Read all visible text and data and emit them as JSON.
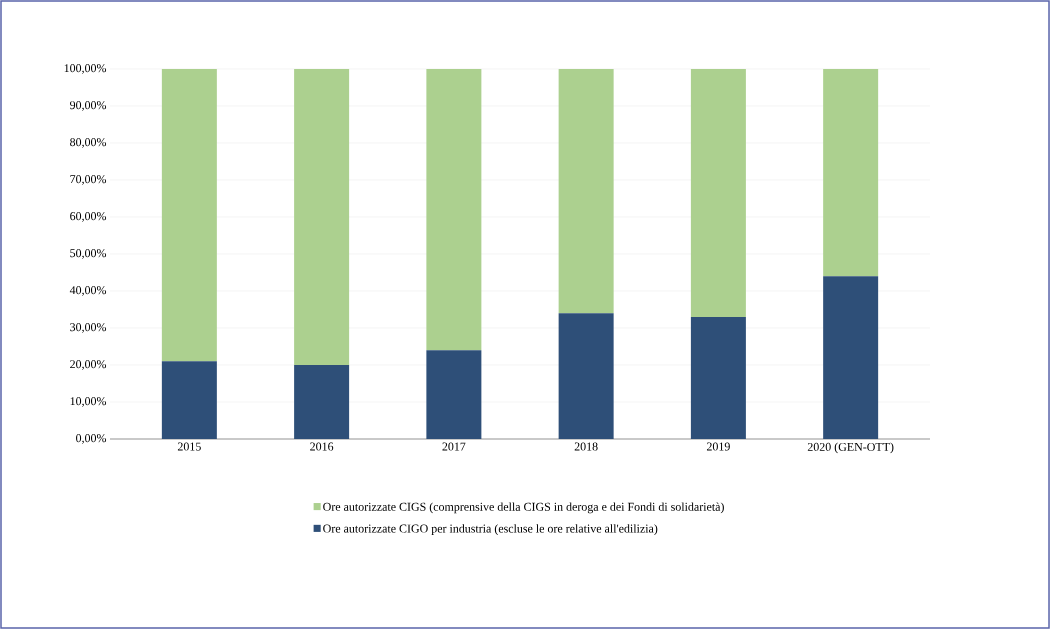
{
  "chart_data": {
    "type": "bar",
    "stacked": true,
    "categories": [
      "2015",
      "2016",
      "2017",
      "2018",
      "2019",
      "2020 (GEN-OTT)"
    ],
    "series": [
      {
        "name": "Ore autorizzate CIGO per industria (escluse le ore relative all'edilizia)",
        "color": "#2e4f78",
        "values": [
          21,
          20,
          24,
          34,
          33,
          44
        ]
      },
      {
        "name": "Ore autorizzate CIGS (comprensive della CIGS in deroga e dei Fondi di solidarietà)",
        "color": "#acd08f",
        "values": [
          79,
          80,
          76,
          66,
          67,
          56
        ]
      }
    ],
    "ylim": [
      0,
      100
    ],
    "yticks": [
      {
        "value": 0,
        "label": "0,00%"
      },
      {
        "value": 10,
        "label": "10,00%"
      },
      {
        "value": 20,
        "label": "20,00%"
      },
      {
        "value": 30,
        "label": "30,00%"
      },
      {
        "value": 40,
        "label": "40,00%"
      },
      {
        "value": 50,
        "label": "50,00%"
      },
      {
        "value": 60,
        "label": "60,00%"
      },
      {
        "value": 70,
        "label": "70,00%"
      },
      {
        "value": 80,
        "label": "80,00%"
      },
      {
        "value": 90,
        "label": "90,00%"
      },
      {
        "value": 100,
        "label": "100,00%"
      }
    ],
    "grid": "y",
    "legend": "bottom"
  }
}
